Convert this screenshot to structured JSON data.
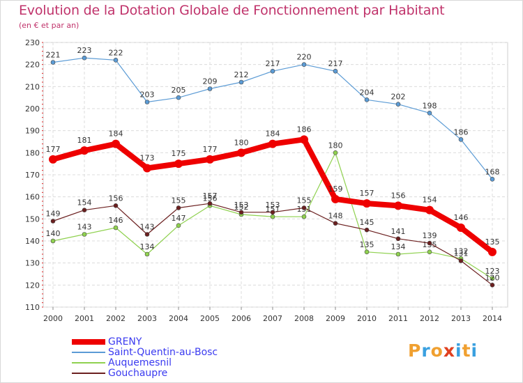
{
  "header": {
    "title": "Evolution de la Dotation Globale de Fonctionnement par Habitant",
    "subtitle": "(en € et par an)"
  },
  "logo": {
    "text": "Proxiti",
    "colors": [
      "#f0a030",
      "#3aa0e0",
      "#f0a030",
      "#e04020",
      "#3aa0e0",
      "#f0a030",
      "#3aa0e0"
    ]
  },
  "chart_data": {
    "type": "line",
    "title": "Evolution de la Dotation Globale de Fonctionnement par Habitant",
    "subtitle": "(en € et par an)",
    "x": [
      "2000",
      "2001",
      "2002",
      "2003",
      "2004",
      "2005",
      "2006",
      "2007",
      "2008",
      "2009",
      "2010",
      "2011",
      "2012",
      "2013",
      "2014"
    ],
    "ylim": [
      110,
      230
    ],
    "yticks": [
      110,
      120,
      130,
      140,
      150,
      160,
      170,
      180,
      190,
      200,
      210,
      220,
      230
    ],
    "grid": true,
    "legend_position": "bottom-left",
    "series": [
      {
        "name": "GRENY",
        "color": "#ee0000",
        "values": [
          177,
          181,
          184,
          173,
          175,
          177,
          180,
          184,
          186,
          159,
          157,
          156,
          154,
          146,
          135
        ]
      },
      {
        "name": "Saint-Quentin-au-Bosc",
        "color": "#5b9bd5",
        "values": [
          221,
          223,
          222,
          203,
          205,
          209,
          212,
          217,
          220,
          217,
          204,
          202,
          198,
          186,
          168
        ]
      },
      {
        "name": "Auquemesnil",
        "color": "#8fd14f",
        "values": [
          140,
          143,
          146,
          134,
          147,
          156,
          152,
          151,
          151,
          180,
          135,
          134,
          135,
          132,
          123
        ]
      },
      {
        "name": "Gouchaupre",
        "color": "#6b1f1f",
        "values": [
          149,
          154,
          156,
          143,
          155,
          157,
          153,
          153,
          155,
          148,
          145,
          141,
          139,
          131,
          120
        ]
      }
    ]
  }
}
